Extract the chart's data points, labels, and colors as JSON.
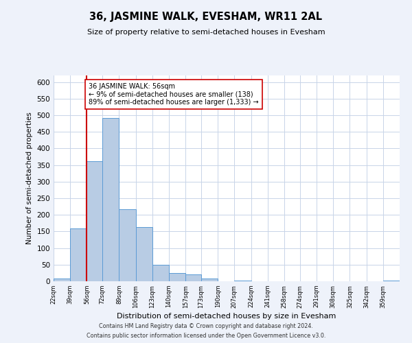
{
  "title": "36, JASMINE WALK, EVESHAM, WR11 2AL",
  "subtitle": "Size of property relative to semi-detached houses in Evesham",
  "xlabel": "Distribution of semi-detached houses by size in Evesham",
  "ylabel": "Number of semi-detached properties",
  "bin_labels": [
    "22sqm",
    "39sqm",
    "56sqm",
    "72sqm",
    "89sqm",
    "106sqm",
    "123sqm",
    "140sqm",
    "157sqm",
    "173sqm",
    "190sqm",
    "207sqm",
    "224sqm",
    "241sqm",
    "258sqm",
    "274sqm",
    "291sqm",
    "308sqm",
    "325sqm",
    "342sqm",
    "359sqm"
  ],
  "bar_heights": [
    8,
    160,
    362,
    492,
    218,
    163,
    50,
    25,
    20,
    8,
    0,
    3,
    0,
    1,
    0,
    0,
    0,
    1,
    0,
    0,
    2
  ],
  "bin_edges": [
    22,
    39,
    56,
    72,
    89,
    106,
    123,
    140,
    157,
    173,
    190,
    207,
    224,
    241,
    258,
    274,
    291,
    308,
    325,
    342,
    359,
    376
  ],
  "bar_color": "#b8cce4",
  "bar_edge_color": "#5b9bd5",
  "property_line_x": 56,
  "property_line_color": "#cc0000",
  "annotation_line1": "36 JASMINE WALK: 56sqm",
  "annotation_line2": "← 9% of semi-detached houses are smaller (138)",
  "annotation_line3": "89% of semi-detached houses are larger (1,333) →",
  "annotation_box_color": "#ffffff",
  "annotation_box_edge": "#cc0000",
  "ylim": [
    0,
    620
  ],
  "yticks": [
    0,
    50,
    100,
    150,
    200,
    250,
    300,
    350,
    400,
    450,
    500,
    550,
    600
  ],
  "footer_line1": "Contains HM Land Registry data © Crown copyright and database right 2024.",
  "footer_line2": "Contains public sector information licensed under the Open Government Licence v3.0.",
  "bg_color": "#eef2fa",
  "plot_bg_color": "#ffffff",
  "grid_color": "#c8d4e8"
}
